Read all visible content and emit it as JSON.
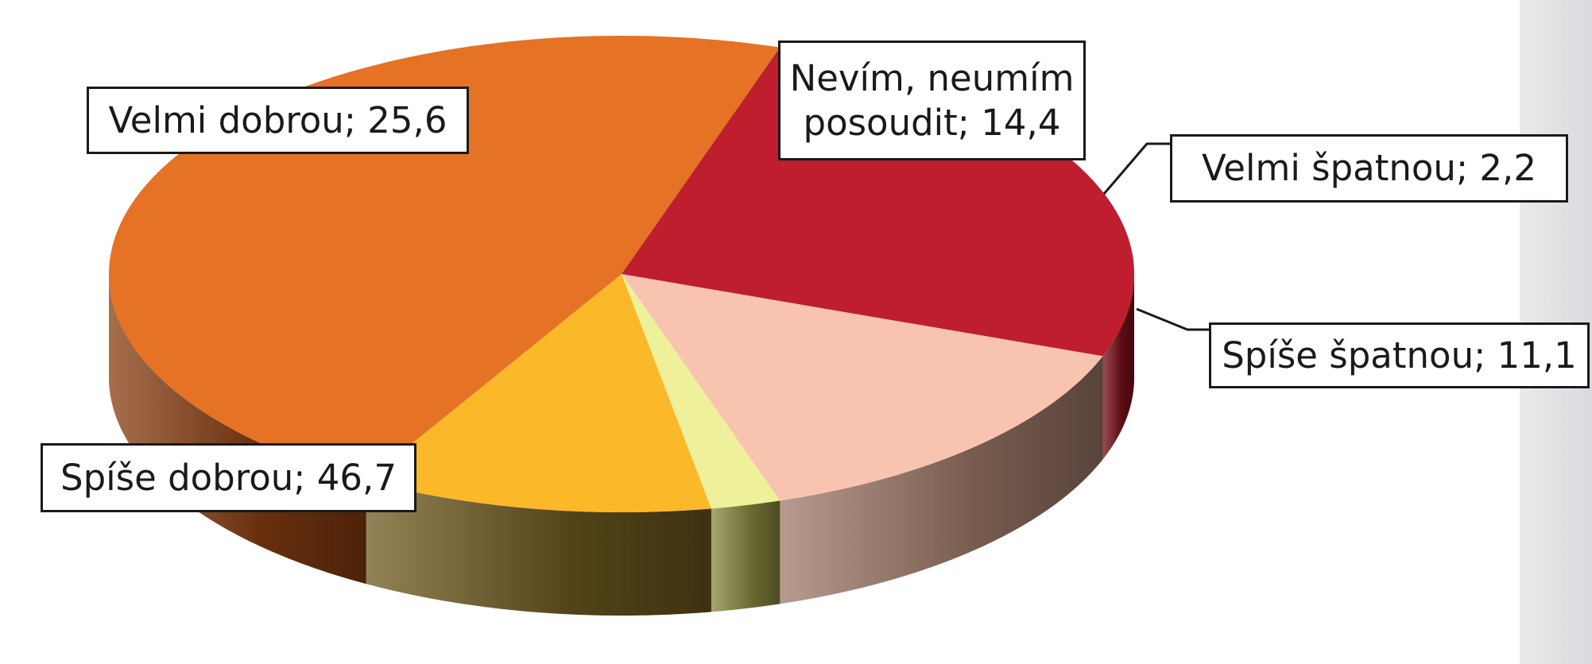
{
  "chart_data": {
    "type": "pie",
    "values": [
      25.6,
      14.4,
      2.2,
      11.1,
      46.7
    ],
    "value_labels": [
      "Velmi dobrou; 25,6",
      "Nevím, neumím\nposoudit; 14,4",
      "Velmi špatnou; 2,2",
      "Spíše špatnou; 11,1",
      "Spíše dobrou; 46,7"
    ],
    "colors": [
      "#be1e2d",
      "#f8c4b0",
      "#eef09a",
      "#fbb829",
      "#e57225"
    ],
    "side_colors": [
      "#7a1018",
      "#a07a6a",
      "#8a8a40",
      "#6e5a1e",
      "#8a3e12"
    ]
  }
}
